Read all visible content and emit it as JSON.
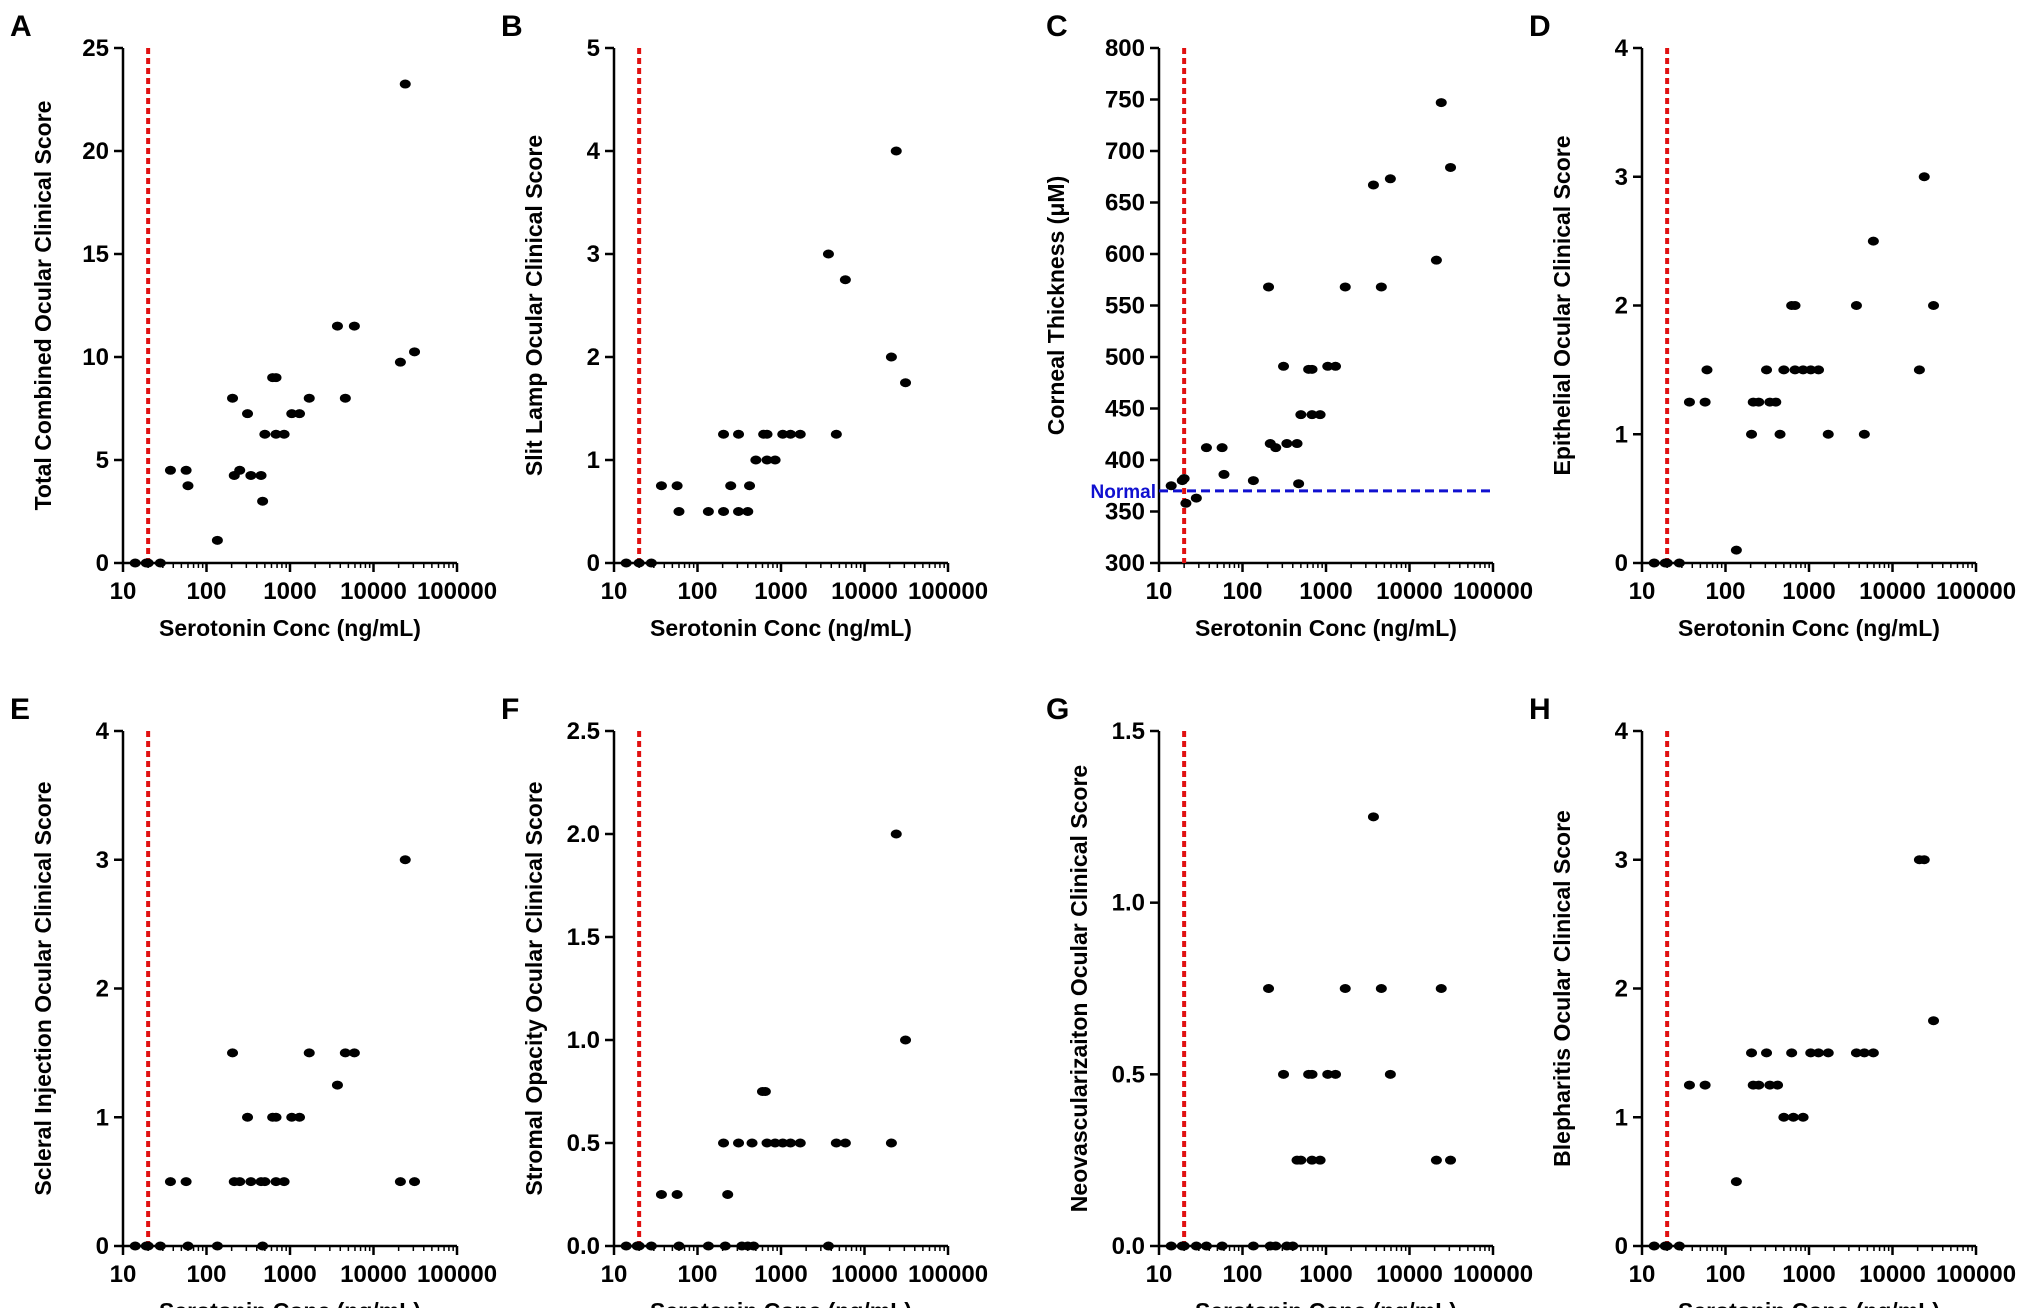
{
  "chart_data": [
    {
      "panel": "A",
      "type": "scatter",
      "ylabel": "Total Combined Ocular Clinical Score",
      "xlabel": "Serotonin Conc (ng/mL)",
      "xscale": "log",
      "xlim": [
        10,
        100000
      ],
      "xticks": [
        "10",
        "100",
        "1000",
        "10000",
        "100000"
      ],
      "ylim": [
        0,
        25
      ],
      "yticks": [
        "0",
        "5",
        "10",
        "15",
        "20",
        "25"
      ],
      "threshold_x": 20,
      "points": [
        [
          14,
          0
        ],
        [
          19,
          0
        ],
        [
          20,
          0
        ],
        [
          28,
          0
        ],
        [
          37,
          4.5
        ],
        [
          57,
          4.5
        ],
        [
          60,
          3.75
        ],
        [
          135,
          1.1
        ],
        [
          205,
          8
        ],
        [
          215,
          4.25
        ],
        [
          250,
          4.5
        ],
        [
          310,
          7.25
        ],
        [
          340,
          4.25
        ],
        [
          450,
          4.25
        ],
        [
          470,
          3
        ],
        [
          500,
          6.25
        ],
        [
          620,
          9
        ],
        [
          680,
          9
        ],
        [
          680,
          6.25
        ],
        [
          850,
          6.25
        ],
        [
          1050,
          7.25
        ],
        [
          1300,
          7.25
        ],
        [
          1700,
          8
        ],
        [
          3700,
          11.5
        ],
        [
          4600,
          8
        ],
        [
          5900,
          11.5
        ],
        [
          21000,
          9.75
        ],
        [
          24000,
          23.25
        ],
        [
          31000,
          10.25
        ]
      ]
    },
    {
      "panel": "B",
      "type": "scatter",
      "ylabel": "Slit Lamp Ocular Clinical Score",
      "xlabel": "Serotonin Conc (ng/mL)",
      "xscale": "log",
      "xlim": [
        10,
        100000
      ],
      "xticks": [
        "10",
        "100",
        "1000",
        "10000",
        "100000"
      ],
      "ylim": [
        0,
        5
      ],
      "yticks": [
        "0",
        "1",
        "2",
        "3",
        "4",
        "5"
      ],
      "threshold_x": 20,
      "points": [
        [
          14,
          0
        ],
        [
          20,
          0
        ],
        [
          28,
          0
        ],
        [
          37,
          0.75
        ],
        [
          57,
          0.75
        ],
        [
          60,
          0.5
        ],
        [
          135,
          0.5
        ],
        [
          205,
          1.25
        ],
        [
          205,
          0.5
        ],
        [
          250,
          0.75
        ],
        [
          310,
          1.25
        ],
        [
          310,
          0.5
        ],
        [
          400,
          0.5
        ],
        [
          420,
          0.75
        ],
        [
          500,
          1
        ],
        [
          620,
          1.25
        ],
        [
          680,
          1.25
        ],
        [
          680,
          1
        ],
        [
          850,
          1
        ],
        [
          1050,
          1.25
        ],
        [
          1300,
          1.25
        ],
        [
          1700,
          1.25
        ],
        [
          3700,
          3
        ],
        [
          4600,
          1.25
        ],
        [
          5900,
          2.75
        ],
        [
          21000,
          2
        ],
        [
          24000,
          4
        ],
        [
          31000,
          1.75
        ]
      ]
    },
    {
      "panel": "C",
      "type": "scatter",
      "ylabel": "Corneal Thickness (μM)",
      "xlabel": "Serotonin Conc (ng/mL)",
      "xscale": "log",
      "xlim": [
        10,
        100000
      ],
      "xticks": [
        "10",
        "100",
        "1000",
        "10000",
        "100000"
      ],
      "ylim": [
        300,
        800
      ],
      "yticks": [
        "300",
        "350",
        "400",
        "450",
        "500",
        "550",
        "600",
        "650",
        "700",
        "750",
        "800"
      ],
      "threshold_x": 20,
      "reference_line": {
        "label": "Normal",
        "y": 370,
        "color": "#1010d0"
      },
      "points": [
        [
          14,
          375
        ],
        [
          19,
          380
        ],
        [
          20,
          382
        ],
        [
          21,
          358
        ],
        [
          28,
          363
        ],
        [
          37,
          412
        ],
        [
          57,
          412
        ],
        [
          60,
          386
        ],
        [
          135,
          380
        ],
        [
          205,
          568
        ],
        [
          215,
          416
        ],
        [
          250,
          412
        ],
        [
          310,
          491
        ],
        [
          340,
          416
        ],
        [
          450,
          416
        ],
        [
          470,
          377
        ],
        [
          500,
          444
        ],
        [
          620,
          488
        ],
        [
          680,
          488
        ],
        [
          680,
          444
        ],
        [
          850,
          444
        ],
        [
          1050,
          491
        ],
        [
          1300,
          491
        ],
        [
          1700,
          568
        ],
        [
          3700,
          667
        ],
        [
          4600,
          568
        ],
        [
          5900,
          673
        ],
        [
          21000,
          594
        ],
        [
          24000,
          747
        ],
        [
          31000,
          684
        ]
      ]
    },
    {
      "panel": "D",
      "type": "scatter",
      "ylabel": "Epithelial Ocular Clinical Score",
      "xlabel": "Serotonin Conc (ng/mL)",
      "xscale": "log",
      "xlim": [
        10,
        100000
      ],
      "xticks": [
        "10",
        "100",
        "1000",
        "10000",
        "100000"
      ],
      "ylim": [
        0,
        4
      ],
      "yticks": [
        "0",
        "1",
        "2",
        "3",
        "4"
      ],
      "threshold_x": 20,
      "points": [
        [
          14,
          0
        ],
        [
          19,
          0
        ],
        [
          20,
          0
        ],
        [
          28,
          0
        ],
        [
          37,
          1.25
        ],
        [
          57,
          1.25
        ],
        [
          60,
          1.5
        ],
        [
          135,
          0.1
        ],
        [
          205,
          1
        ],
        [
          215,
          1.25
        ],
        [
          250,
          1.25
        ],
        [
          310,
          1.5
        ],
        [
          340,
          1.25
        ],
        [
          400,
          1.25
        ],
        [
          450,
          1
        ],
        [
          500,
          1.5
        ],
        [
          620,
          2
        ],
        [
          680,
          2
        ],
        [
          680,
          1.5
        ],
        [
          850,
          1.5
        ],
        [
          1050,
          1.5
        ],
        [
          1300,
          1.5
        ],
        [
          1700,
          1
        ],
        [
          3700,
          2
        ],
        [
          4600,
          1
        ],
        [
          5900,
          2.5
        ],
        [
          21000,
          1.5
        ],
        [
          24000,
          3
        ],
        [
          31000,
          2
        ]
      ]
    },
    {
      "panel": "E",
      "type": "scatter",
      "ylabel": "Scleral  Injection Ocular Clinical Score",
      "xlabel": "Serotonin Conc (ng/mL)",
      "xscale": "log",
      "xlim": [
        10,
        100000
      ],
      "xticks": [
        "10",
        "100",
        "1000",
        "10000",
        "100000"
      ],
      "ylim": [
        0,
        4
      ],
      "yticks": [
        "0",
        "1",
        "2",
        "3",
        "4"
      ],
      "threshold_x": 20,
      "points": [
        [
          14,
          0
        ],
        [
          19,
          0
        ],
        [
          20,
          0
        ],
        [
          28,
          0
        ],
        [
          37,
          0.5
        ],
        [
          57,
          0.5
        ],
        [
          60,
          0
        ],
        [
          135,
          0
        ],
        [
          205,
          1.5
        ],
        [
          215,
          0.5
        ],
        [
          250,
          0.5
        ],
        [
          310,
          1
        ],
        [
          340,
          0.5
        ],
        [
          450,
          0.5
        ],
        [
          470,
          0
        ],
        [
          500,
          0.5
        ],
        [
          620,
          1
        ],
        [
          680,
          1
        ],
        [
          680,
          0.5
        ],
        [
          850,
          0.5
        ],
        [
          1050,
          1
        ],
        [
          1300,
          1
        ],
        [
          1700,
          1.5
        ],
        [
          3700,
          1.25
        ],
        [
          4600,
          1.5
        ],
        [
          5900,
          1.5
        ],
        [
          21000,
          0.5
        ],
        [
          24000,
          3
        ],
        [
          31000,
          0.5
        ]
      ]
    },
    {
      "panel": "F",
      "type": "scatter",
      "ylabel": "Stromal Opacity Ocular Clinical Score",
      "xlabel": "Serotonin Conc (ng/mL)",
      "xscale": "log",
      "xlim": [
        10,
        100000
      ],
      "xticks": [
        "10",
        "100",
        "1000",
        "10000",
        "100000"
      ],
      "ylim": [
        0,
        2.5
      ],
      "yticks": [
        "0.0",
        "0.5",
        "1.0",
        "1.5",
        "2.0",
        "2.5"
      ],
      "threshold_x": 20,
      "points": [
        [
          14,
          0
        ],
        [
          19,
          0
        ],
        [
          20,
          0
        ],
        [
          28,
          0
        ],
        [
          37,
          0.25
        ],
        [
          57,
          0.25
        ],
        [
          60,
          0
        ],
        [
          135,
          0
        ],
        [
          205,
          0.5
        ],
        [
          215,
          0
        ],
        [
          230,
          0.25
        ],
        [
          310,
          0.5
        ],
        [
          340,
          0
        ],
        [
          400,
          0
        ],
        [
          450,
          0.5
        ],
        [
          470,
          0
        ],
        [
          600,
          0.75
        ],
        [
          650,
          0.75
        ],
        [
          680,
          0.5
        ],
        [
          850,
          0.5
        ],
        [
          1050,
          0.5
        ],
        [
          1300,
          0.5
        ],
        [
          1700,
          0.5
        ],
        [
          3700,
          0
        ],
        [
          4600,
          0.5
        ],
        [
          5900,
          0.5
        ],
        [
          21000,
          0.5
        ],
        [
          24000,
          2
        ],
        [
          31000,
          1
        ]
      ]
    },
    {
      "panel": "G",
      "type": "scatter",
      "ylabel": "Neovascularizaiton Ocular Clinical Score",
      "xlabel": "Serotonin Conc (ng/mL)",
      "xscale": "log",
      "xlim": [
        10,
        100000
      ],
      "xticks": [
        "10",
        "100",
        "1000",
        "10000",
        "100000"
      ],
      "ylim": [
        0,
        1.5
      ],
      "yticks": [
        "0.0",
        "0.5",
        "1.0",
        "1.5"
      ],
      "threshold_x": 20,
      "points": [
        [
          14,
          0
        ],
        [
          19,
          0
        ],
        [
          20,
          0
        ],
        [
          28,
          0
        ],
        [
          37,
          0
        ],
        [
          57,
          0
        ],
        [
          135,
          0
        ],
        [
          205,
          0.75
        ],
        [
          215,
          0
        ],
        [
          250,
          0
        ],
        [
          310,
          0.5
        ],
        [
          340,
          0
        ],
        [
          400,
          0
        ],
        [
          450,
          0.25
        ],
        [
          500,
          0.25
        ],
        [
          620,
          0.5
        ],
        [
          680,
          0.5
        ],
        [
          680,
          0.25
        ],
        [
          850,
          0.25
        ],
        [
          1050,
          0.5
        ],
        [
          1300,
          0.5
        ],
        [
          1700,
          0.75
        ],
        [
          3700,
          1.25
        ],
        [
          4600,
          0.75
        ],
        [
          5900,
          0.5
        ],
        [
          21000,
          0.25
        ],
        [
          24000,
          0.75
        ],
        [
          31000,
          0.25
        ]
      ]
    },
    {
      "panel": "H",
      "type": "scatter",
      "ylabel": "Blepharitis Ocular Clinical Score",
      "xlabel": "Serotonin Conc (ng/mL)",
      "xscale": "log",
      "xlim": [
        10,
        100000
      ],
      "xticks": [
        "10",
        "100",
        "1000",
        "10000",
        "100000"
      ],
      "ylim": [
        0,
        4
      ],
      "yticks": [
        "0",
        "1",
        "2",
        "3",
        "4"
      ],
      "threshold_x": 20,
      "points": [
        [
          14,
          0
        ],
        [
          19,
          0
        ],
        [
          20,
          0
        ],
        [
          28,
          0
        ],
        [
          37,
          1.25
        ],
        [
          57,
          1.25
        ],
        [
          135,
          0.5
        ],
        [
          205,
          1.5
        ],
        [
          215,
          1.25
        ],
        [
          250,
          1.25
        ],
        [
          310,
          1.5
        ],
        [
          340,
          1.25
        ],
        [
          420,
          1.25
        ],
        [
          500,
          1
        ],
        [
          620,
          1.5
        ],
        [
          650,
          1
        ],
        [
          850,
          1
        ],
        [
          1050,
          1.5
        ],
        [
          1300,
          1.5
        ],
        [
          1700,
          1.5
        ],
        [
          3700,
          1.5
        ],
        [
          4600,
          1.5
        ],
        [
          5900,
          1.5
        ],
        [
          21000,
          3
        ],
        [
          24000,
          3
        ],
        [
          31000,
          1.75
        ]
      ]
    }
  ],
  "colors": {
    "threshold": "#e01010",
    "points": "#000000",
    "normal": "#1010d0"
  }
}
